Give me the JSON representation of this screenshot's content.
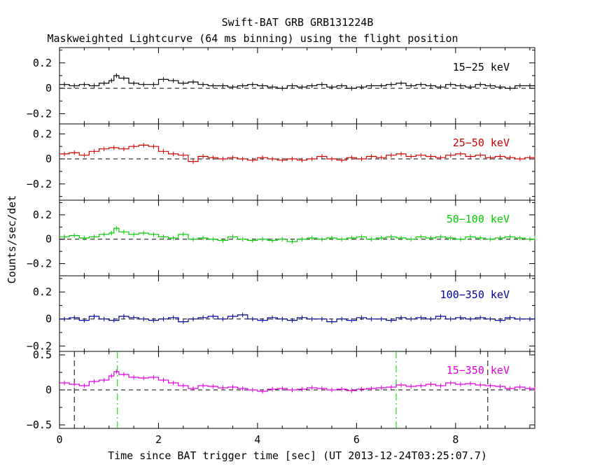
{
  "figure": {
    "title": "Swift-BAT GRB GRB131224B",
    "subtitle": "Maskweighted Lightcurve (64 ms binning) using the flight position",
    "xlabel": "Time since BAT trigger time [sec] (UT 2013-12-24T03:25:07.7)",
    "ylabel": "Counts/sec/det"
  },
  "chart_data": [
    {
      "type": "line",
      "band": "15-25 keV",
      "color": "#000000",
      "ylim": [
        -0.28,
        0.32
      ],
      "yticks": [
        -0.2,
        0,
        0.2
      ],
      "ytick_labels": [
        "−0.2",
        "0",
        "0.2"
      ],
      "xlim": [
        0,
        9.6
      ],
      "series": [
        {
          "name": "15−25 keV",
          "x": [
            0.0,
            0.2,
            0.4,
            0.6,
            0.8,
            1.0,
            1.1,
            1.2,
            1.4,
            1.6,
            1.8,
            2.0,
            2.2,
            2.4,
            2.6,
            2.8,
            3.0,
            3.2,
            3.4,
            3.6,
            3.8,
            4.0,
            4.2,
            4.4,
            4.6,
            4.8,
            5.0,
            5.2,
            5.4,
            5.6,
            5.8,
            6.0,
            6.2,
            6.4,
            6.6,
            6.8,
            7.0,
            7.2,
            7.4,
            7.6,
            7.8,
            8.0,
            8.2,
            8.4,
            8.6,
            8.8,
            9.0,
            9.2,
            9.4,
            9.6
          ],
          "y": [
            0.03,
            0.02,
            0.03,
            0.02,
            0.04,
            0.06,
            0.1,
            0.08,
            0.04,
            0.03,
            0.03,
            0.07,
            0.06,
            0.04,
            0.05,
            0.03,
            0.02,
            0.02,
            0.01,
            0.02,
            0.03,
            0.02,
            0.01,
            0.0,
            0.02,
            0.01,
            0.02,
            0.03,
            0.01,
            0.02,
            0.0,
            0.01,
            0.02,
            0.02,
            0.03,
            0.04,
            0.02,
            0.03,
            0.02,
            0.01,
            0.03,
            0.02,
            0.01,
            0.03,
            0.02,
            0.01,
            0.0,
            0.02,
            0.02,
            0.01
          ]
        }
      ]
    },
    {
      "type": "line",
      "band": "25-50 keV",
      "color": "#cc0000",
      "ylim": [
        -0.33,
        0.28
      ],
      "yticks": [
        -0.2,
        0,
        0.2
      ],
      "ytick_labels": [
        "−0.2",
        "0",
        "0.2"
      ],
      "xlim": [
        0,
        9.6
      ],
      "series": [
        {
          "name": "25−50 keV",
          "x": [
            0.0,
            0.2,
            0.4,
            0.6,
            0.8,
            1.0,
            1.2,
            1.4,
            1.6,
            1.8,
            2.0,
            2.2,
            2.4,
            2.6,
            2.8,
            3.0,
            3.2,
            3.4,
            3.6,
            3.8,
            4.0,
            4.2,
            4.4,
            4.6,
            4.8,
            5.0,
            5.2,
            5.4,
            5.6,
            5.8,
            6.0,
            6.2,
            6.4,
            6.6,
            6.8,
            7.0,
            7.2,
            7.4,
            7.6,
            7.8,
            8.0,
            8.2,
            8.4,
            8.6,
            8.8,
            9.0,
            9.2,
            9.4,
            9.6
          ],
          "y": [
            0.04,
            0.05,
            0.03,
            0.06,
            0.08,
            0.09,
            0.08,
            0.1,
            0.11,
            0.1,
            0.06,
            0.04,
            0.03,
            -0.02,
            0.02,
            0.01,
            0.0,
            0.01,
            0.0,
            -0.01,
            0.01,
            0.0,
            -0.01,
            0.0,
            -0.01,
            0.0,
            0.02,
            0.0,
            -0.01,
            0.01,
            0.0,
            0.02,
            0.01,
            0.03,
            0.04,
            0.02,
            0.03,
            0.02,
            0.01,
            0.03,
            0.04,
            0.02,
            0.03,
            0.01,
            0.02,
            0.01,
            0.0,
            0.01,
            0.01
          ]
        }
      ]
    },
    {
      "type": "line",
      "band": "50-100 keV",
      "color": "#00cc00",
      "ylim": [
        -0.3,
        0.32
      ],
      "yticks": [
        -0.2,
        0,
        0.2
      ],
      "ytick_labels": [
        "−0.2",
        "0",
        "0.2"
      ],
      "xlim": [
        0,
        9.6
      ],
      "series": [
        {
          "name": "50−100 keV",
          "x": [
            0.0,
            0.2,
            0.4,
            0.6,
            0.8,
            1.0,
            1.1,
            1.2,
            1.4,
            1.6,
            1.8,
            2.0,
            2.2,
            2.4,
            2.6,
            2.8,
            3.0,
            3.2,
            3.4,
            3.6,
            3.8,
            4.0,
            4.2,
            4.4,
            4.6,
            4.8,
            5.0,
            5.2,
            5.4,
            5.6,
            5.8,
            6.0,
            6.2,
            6.4,
            6.6,
            6.8,
            7.0,
            7.2,
            7.4,
            7.6,
            7.8,
            8.0,
            8.2,
            8.4,
            8.6,
            8.8,
            9.0,
            9.2,
            9.4,
            9.6
          ],
          "y": [
            0.02,
            0.03,
            0.01,
            0.02,
            0.04,
            0.05,
            0.09,
            0.06,
            0.04,
            0.05,
            0.04,
            0.02,
            0.01,
            0.04,
            0.0,
            0.01,
            0.0,
            -0.01,
            0.02,
            0.0,
            -0.01,
            0.0,
            -0.01,
            0.0,
            -0.02,
            0.0,
            0.01,
            0.0,
            0.01,
            0.0,
            0.01,
            0.02,
            0.0,
            0.01,
            0.02,
            0.01,
            0.0,
            0.02,
            0.01,
            0.02,
            0.01,
            0.0,
            0.02,
            0.01,
            0.0,
            0.01,
            0.02,
            0.01,
            0.0,
            0.01
          ]
        }
      ]
    },
    {
      "type": "line",
      "band": "100-350 keV",
      "color": "#000099",
      "ylim": [
        -0.24,
        0.32
      ],
      "yticks": [
        -0.2,
        0,
        0.2
      ],
      "ytick_labels": [
        "−0.2",
        "0",
        "0.2"
      ],
      "xlim": [
        0,
        9.6
      ],
      "series": [
        {
          "name": "100−350 keV",
          "x": [
            0.0,
            0.2,
            0.4,
            0.6,
            0.8,
            1.0,
            1.2,
            1.4,
            1.6,
            1.8,
            2.0,
            2.2,
            2.4,
            2.6,
            2.8,
            3.0,
            3.2,
            3.4,
            3.6,
            3.8,
            4.0,
            4.2,
            4.4,
            4.6,
            4.8,
            5.0,
            5.2,
            5.4,
            5.6,
            5.8,
            6.0,
            6.2,
            6.4,
            6.6,
            6.8,
            7.0,
            7.2,
            7.4,
            7.6,
            7.8,
            8.0,
            8.2,
            8.4,
            8.6,
            8.8,
            9.0,
            9.2,
            9.4,
            9.6
          ],
          "y": [
            0.0,
            0.01,
            -0.01,
            0.02,
            0.0,
            -0.01,
            0.02,
            0.01,
            0.0,
            -0.01,
            0.0,
            0.01,
            -0.02,
            0.0,
            0.01,
            0.02,
            0.0,
            0.02,
            0.03,
            0.0,
            -0.01,
            0.01,
            0.0,
            -0.01,
            0.01,
            0.0,
            0.0,
            -0.02,
            0.0,
            -0.01,
            0.01,
            0.0,
            0.0,
            -0.01,
            0.01,
            0.0,
            0.01,
            0.0,
            0.02,
            0.0,
            0.01,
            0.0,
            0.01,
            0.0,
            -0.01,
            0.01,
            0.0,
            0.0,
            0.01
          ]
        }
      ]
    },
    {
      "type": "line",
      "band": "15-350 keV",
      "color": "#e000e0",
      "ylim": [
        -0.55,
        0.55
      ],
      "yticks": [
        -0.5,
        0,
        0.5
      ],
      "ytick_labels": [
        "−0.5",
        "0",
        "0.5"
      ],
      "xlim": [
        0,
        9.6
      ],
      "xticks": [
        0,
        2,
        4,
        6,
        8
      ],
      "xtick_labels": [
        "0",
        "2",
        "4",
        "6",
        "8"
      ],
      "vlines_black": [
        0.3,
        8.65
      ],
      "vlines_green": [
        1.17,
        6.8
      ],
      "series": [
        {
          "name": "15−350 keV",
          "x": [
            0.0,
            0.2,
            0.4,
            0.6,
            0.8,
            1.0,
            1.1,
            1.2,
            1.4,
            1.6,
            1.8,
            2.0,
            2.2,
            2.4,
            2.6,
            2.8,
            3.0,
            3.2,
            3.4,
            3.6,
            3.8,
            4.0,
            4.2,
            4.4,
            4.6,
            4.8,
            5.0,
            5.2,
            5.4,
            5.6,
            5.8,
            6.0,
            6.2,
            6.4,
            6.6,
            6.8,
            7.0,
            7.2,
            7.4,
            7.6,
            7.8,
            8.0,
            8.2,
            8.4,
            8.6,
            8.8,
            9.0,
            9.2,
            9.4,
            9.6
          ],
          "y": [
            0.1,
            0.08,
            0.06,
            0.12,
            0.14,
            0.2,
            0.26,
            0.22,
            0.18,
            0.17,
            0.18,
            0.14,
            0.1,
            0.06,
            0.02,
            0.06,
            0.05,
            0.03,
            0.04,
            0.02,
            0.0,
            -0.02,
            0.01,
            0.02,
            0.0,
            0.01,
            0.03,
            0.02,
            0.0,
            0.01,
            -0.01,
            0.01,
            0.02,
            0.03,
            0.04,
            0.07,
            0.05,
            0.06,
            0.08,
            0.06,
            0.1,
            0.08,
            0.09,
            0.07,
            0.06,
            0.05,
            0.02,
            0.04,
            0.02,
            0.01
          ]
        }
      ]
    }
  ]
}
